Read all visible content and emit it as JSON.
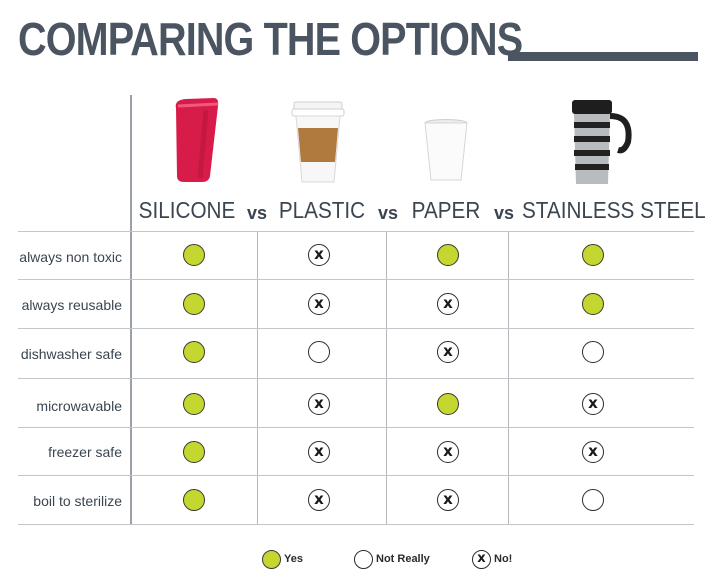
{
  "title": "COMPARING THE OPTIONS",
  "colors": {
    "yes": "#c4d630",
    "title": "#4b5561"
  },
  "columns": [
    {
      "name": "SILICONE",
      "icon": "silicone-cup-icon"
    },
    {
      "name": "PLASTIC",
      "icon": "plastic-lid-coffee-cup-icon"
    },
    {
      "name": "PAPER",
      "icon": "paper-cup-icon"
    },
    {
      "name": "STAINLESS STEEL",
      "icon": "steel-travel-mug-icon"
    }
  ],
  "vs_label": "vs",
  "rows": [
    {
      "label": "always non toxic",
      "values": [
        "yes",
        "no",
        "yes",
        "yes"
      ]
    },
    {
      "label": "always reusable",
      "values": [
        "yes",
        "no",
        "no",
        "yes"
      ]
    },
    {
      "label": "dishwasher safe",
      "values": [
        "yes",
        "not-really",
        "no",
        "not-really"
      ]
    },
    {
      "label": "microwavable",
      "values": [
        "yes",
        "no",
        "yes",
        "no"
      ]
    },
    {
      "label": "freezer safe",
      "values": [
        "yes",
        "no",
        "no",
        "no"
      ]
    },
    {
      "label": "boil to sterilize",
      "values": [
        "yes",
        "no",
        "no",
        "not-really"
      ]
    }
  ],
  "legend": [
    {
      "key": "yes",
      "label": "Yes"
    },
    {
      "key": "not-really",
      "label": "Not Really"
    },
    {
      "key": "no",
      "label": "No!"
    }
  ]
}
